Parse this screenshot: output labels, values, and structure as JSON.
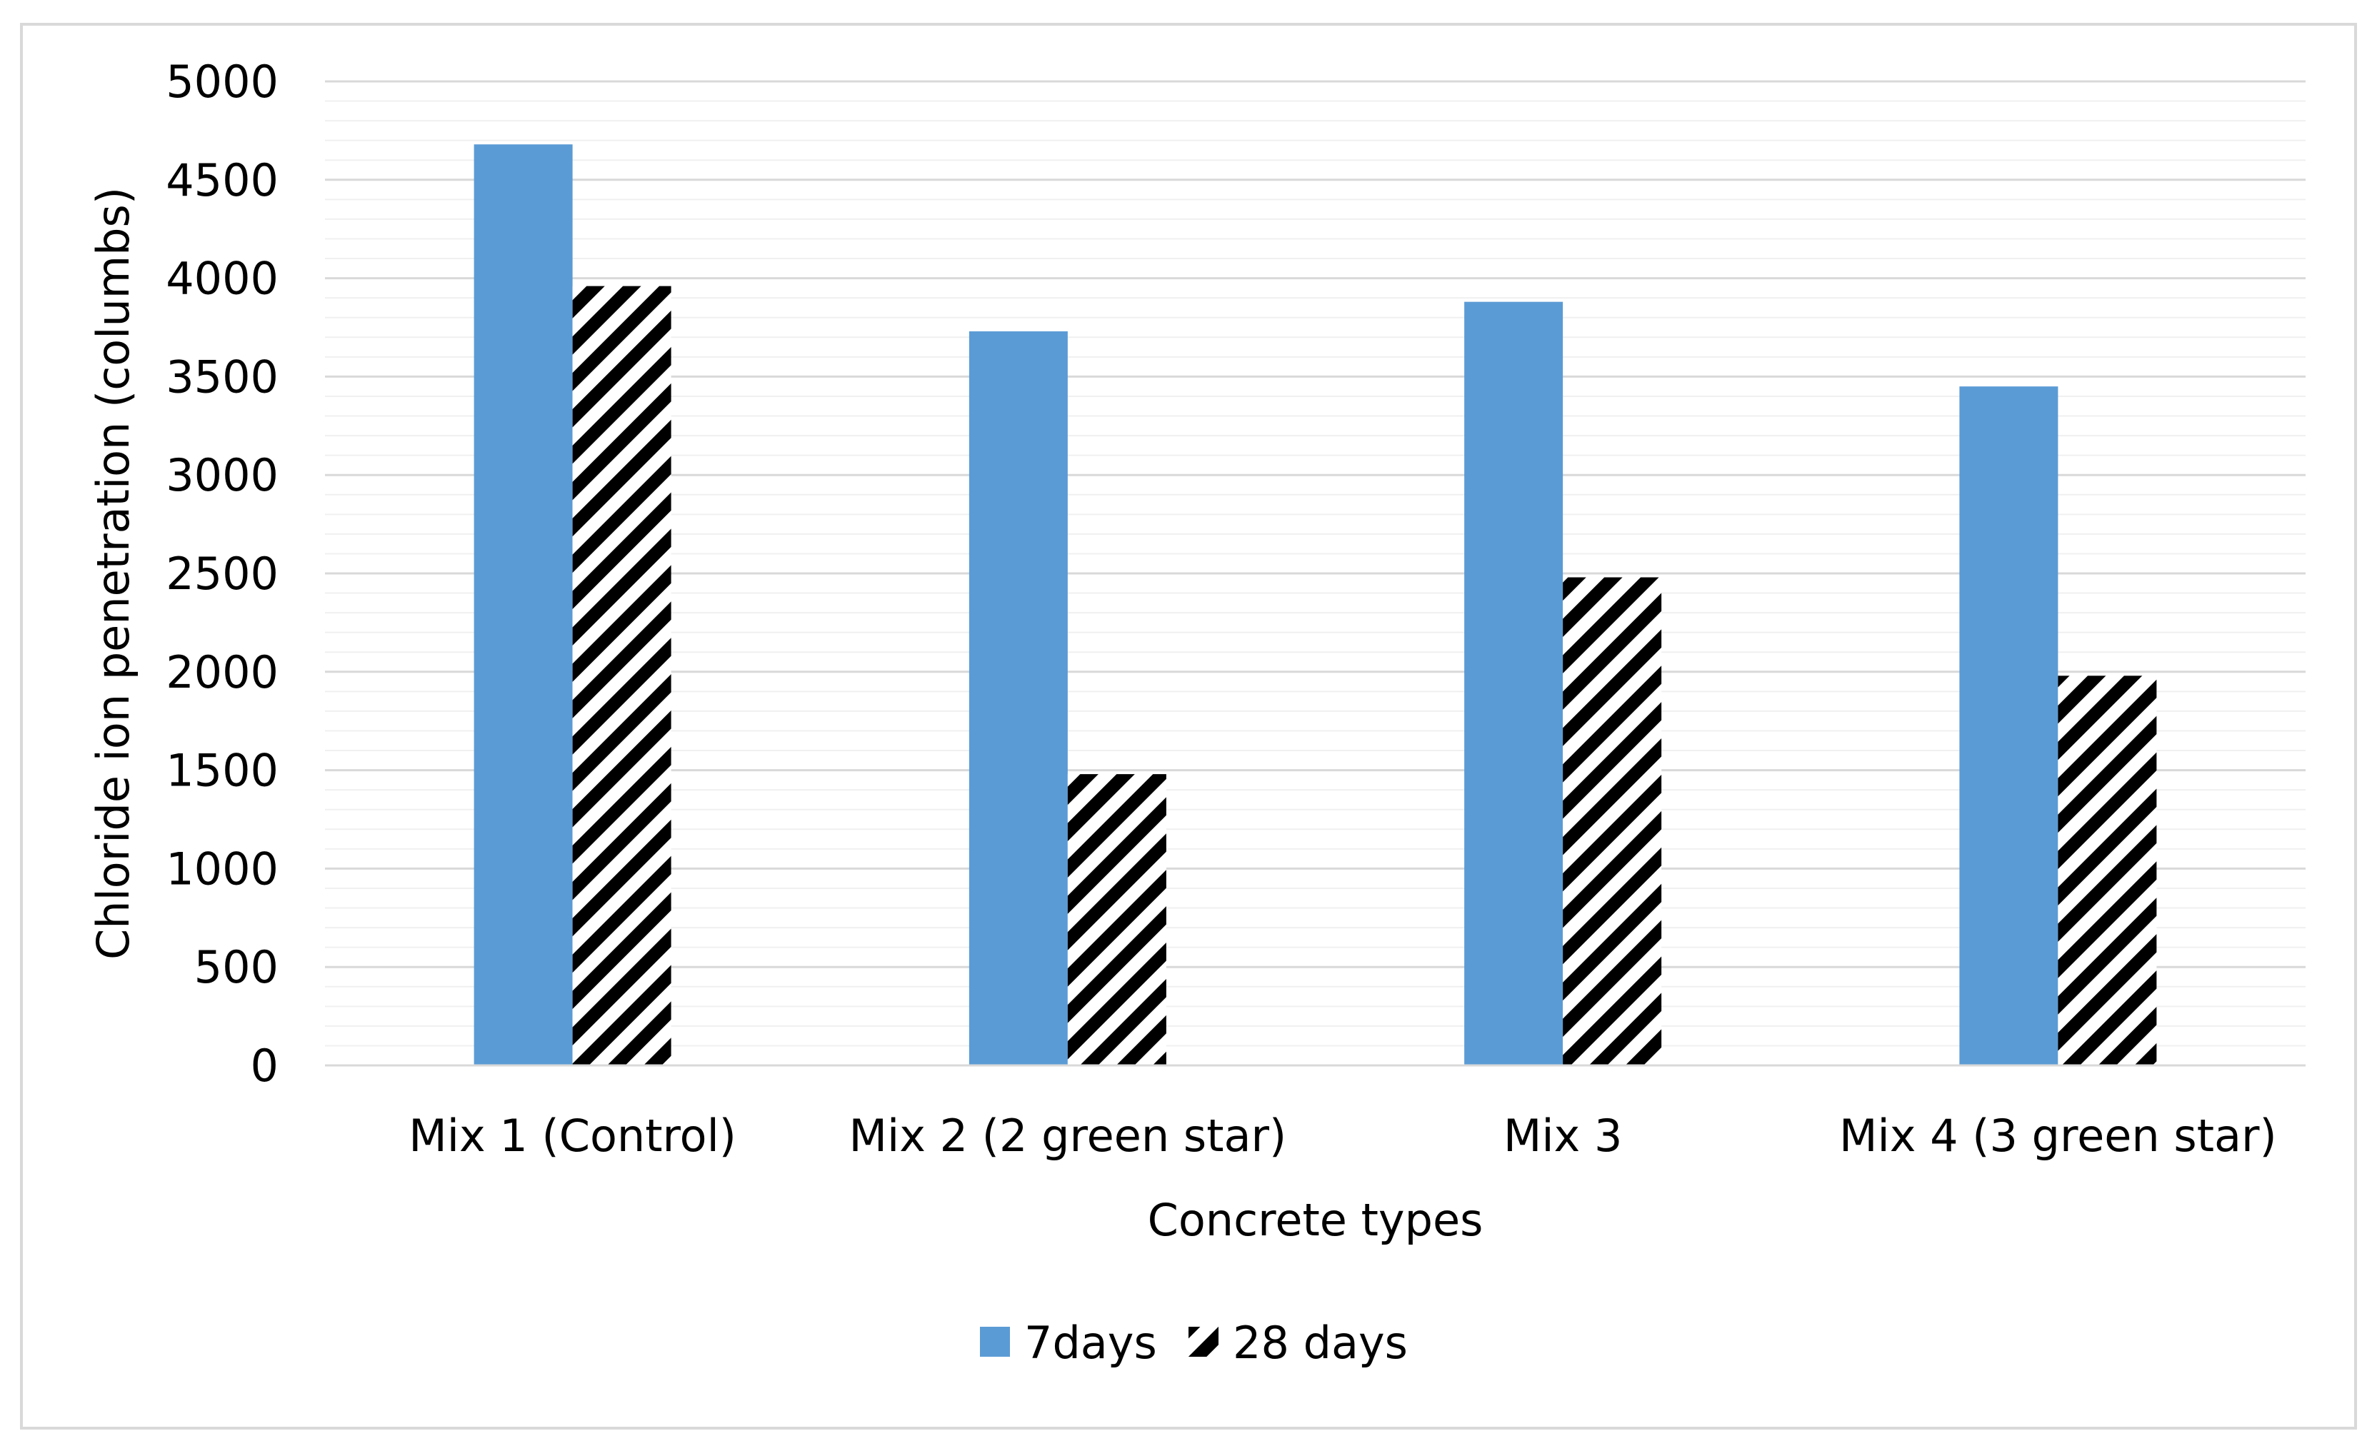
{
  "chart_data": {
    "type": "bar",
    "title": "",
    "xlabel": "Concrete types",
    "ylabel": "Chloride ion penetration (columbs)",
    "categories": [
      "Mix 1 (Control)",
      "Mix 2 (2 green star)",
      "Mix 3",
      "Mix 4 (3 green star)"
    ],
    "series": [
      {
        "name": "7days",
        "values": [
          4680,
          3730,
          3880,
          3450
        ],
        "color": "#5b9bd5",
        "pattern": "solid"
      },
      {
        "name": "28 days",
        "values": [
          3960,
          1480,
          2480,
          1980
        ],
        "color": "#000000",
        "pattern": "diagonal-hatch"
      }
    ],
    "ylim": [
      0,
      5000
    ],
    "yticks": [
      0,
      500,
      1000,
      1500,
      2000,
      2500,
      3000,
      3500,
      4000,
      4500,
      5000
    ],
    "grid": true,
    "minor_grid": true,
    "legend_position": "bottom"
  }
}
